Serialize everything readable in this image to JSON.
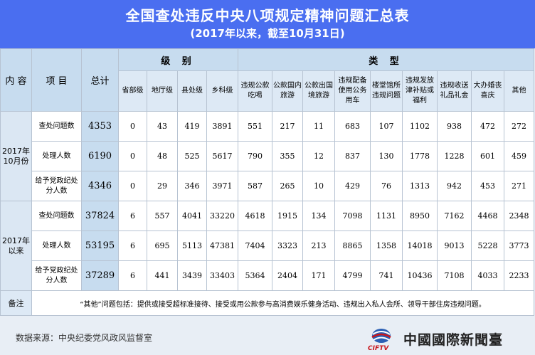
{
  "header": {
    "title": "全国查处违反中央八项规定精神问题汇总表",
    "subtitle": "(2017年以来，截至10月31日)"
  },
  "table": {
    "h_content": "内 容",
    "h_item": "项 目",
    "h_total": "总计",
    "h_level": "级 别",
    "h_type": "类 型",
    "levels": [
      "省部级",
      "地厅级",
      "县处级",
      "乡科级"
    ],
    "types": [
      "违规公款吃喝",
      "公款国内旅游",
      "公款出国境旅游",
      "违规配备使用公务用车",
      "楼堂馆所违规问题",
      "违规发放津补贴或福利",
      "违规收送礼品礼金",
      "大办婚丧喜庆",
      "其他"
    ],
    "groups": [
      {
        "label": "2017年10月份",
        "rows": [
          {
            "item": "查处问题数",
            "total": "4353",
            "cells": [
              "0",
              "43",
              "419",
              "3891",
              "551",
              "217",
              "11",
              "683",
              "107",
              "1102",
              "938",
              "472",
              "272"
            ]
          },
          {
            "item": "处理人数",
            "total": "6190",
            "cells": [
              "0",
              "48",
              "525",
              "5617",
              "790",
              "355",
              "12",
              "837",
              "130",
              "1778",
              "1228",
              "601",
              "459"
            ]
          },
          {
            "item": "给予党政纪处分人数",
            "total": "4346",
            "cells": [
              "0",
              "29",
              "346",
              "3971",
              "587",
              "265",
              "10",
              "429",
              "76",
              "1313",
              "942",
              "453",
              "271"
            ]
          }
        ]
      },
      {
        "label": "2017年以来",
        "rows": [
          {
            "item": "查处问题数",
            "total": "37824",
            "cells": [
              "6",
              "557",
              "4041",
              "33220",
              "4618",
              "1915",
              "134",
              "7098",
              "1131",
              "8950",
              "7162",
              "4468",
              "2348"
            ]
          },
          {
            "item": "处理人数",
            "total": "53195",
            "cells": [
              "6",
              "695",
              "5113",
              "47381",
              "7404",
              "3323",
              "213",
              "8865",
              "1358",
              "14018",
              "9013",
              "5228",
              "3773"
            ]
          },
          {
            "item": "给予党政纪处分人数",
            "total": "37289",
            "cells": [
              "6",
              "441",
              "3439",
              "33403",
              "5364",
              "2404",
              "171",
              "4799",
              "741",
              "10436",
              "7108",
              "4033",
              "2233"
            ]
          }
        ]
      }
    ],
    "note_label": "备注",
    "note_text": "“其他”问题包括：提供或接受超标准接待、接受或用公款参与高消费娱乐健身活动、违规出入私人会所、领导干部住房违规问题。"
  },
  "footer": {
    "source": "数据来源：中央纪委党风政风监督室",
    "logo_abbr": "CIFTV",
    "logo_name": "中國國際新聞臺"
  },
  "colors": {
    "header_bg": "#4a6ef0",
    "header_cell": "#c7dcef",
    "subheader_cell": "#dde9f5",
    "logo_red": "#c8171d"
  },
  "icons": [
    "globe-logo-icon"
  ]
}
